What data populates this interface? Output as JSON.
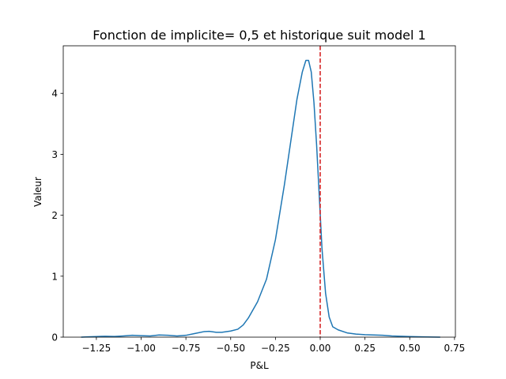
{
  "chart_data": {
    "type": "line",
    "title": "Fonction de implicite= 0,5 et historique suit model 1",
    "xlabel": "P&L",
    "ylabel": "Valeur",
    "xlim": [
      -1.435,
      0.755
    ],
    "ylim": [
      0,
      4.78
    ],
    "xticks": [
      -1.25,
      -1.0,
      -0.75,
      -0.5,
      -0.25,
      0.0,
      0.25,
      0.5,
      0.75
    ],
    "xtick_labels": [
      "−1.25",
      "−1.00",
      "−0.75",
      "−0.50",
      "−0.25",
      "0.00",
      "0.25",
      "0.50",
      "0.75"
    ],
    "yticks": [
      0,
      1,
      2,
      3,
      4
    ],
    "ytick_labels": [
      "0",
      "1",
      "2",
      "3",
      "4"
    ],
    "grid": false,
    "legend": "none",
    "series": [
      {
        "color": "#1f77b4",
        "x": [
          -1.335,
          -1.3,
          -1.25,
          -1.2,
          -1.15,
          -1.1,
          -1.05,
          -1.0,
          -0.95,
          -0.9,
          -0.85,
          -0.8,
          -0.75,
          -0.7,
          -0.65,
          -0.62,
          -0.58,
          -0.55,
          -0.5,
          -0.46,
          -0.43,
          -0.4,
          -0.35,
          -0.3,
          -0.25,
          -0.2,
          -0.16,
          -0.13,
          -0.1,
          -0.08,
          -0.065,
          -0.05,
          -0.035,
          -0.02,
          -0.005,
          0.01,
          0.03,
          0.05,
          0.07,
          0.1,
          0.15,
          0.2,
          0.25,
          0.3,
          0.35,
          0.4,
          0.45,
          0.5,
          0.55,
          0.6,
          0.67
        ],
        "y": [
          0.0,
          0.005,
          0.01,
          0.015,
          0.012,
          0.02,
          0.03,
          0.025,
          0.02,
          0.035,
          0.03,
          0.02,
          0.03,
          0.06,
          0.09,
          0.095,
          0.08,
          0.08,
          0.1,
          0.13,
          0.2,
          0.32,
          0.58,
          0.95,
          1.6,
          2.5,
          3.3,
          3.9,
          4.35,
          4.54,
          4.54,
          4.35,
          3.85,
          3.15,
          2.3,
          1.45,
          0.72,
          0.33,
          0.17,
          0.12,
          0.07,
          0.05,
          0.04,
          0.035,
          0.03,
          0.02,
          0.015,
          0.01,
          0.007,
          0.004,
          0.0
        ]
      }
    ],
    "vline": {
      "x": 0.0,
      "color": "#d62728",
      "style": "dashed"
    }
  }
}
